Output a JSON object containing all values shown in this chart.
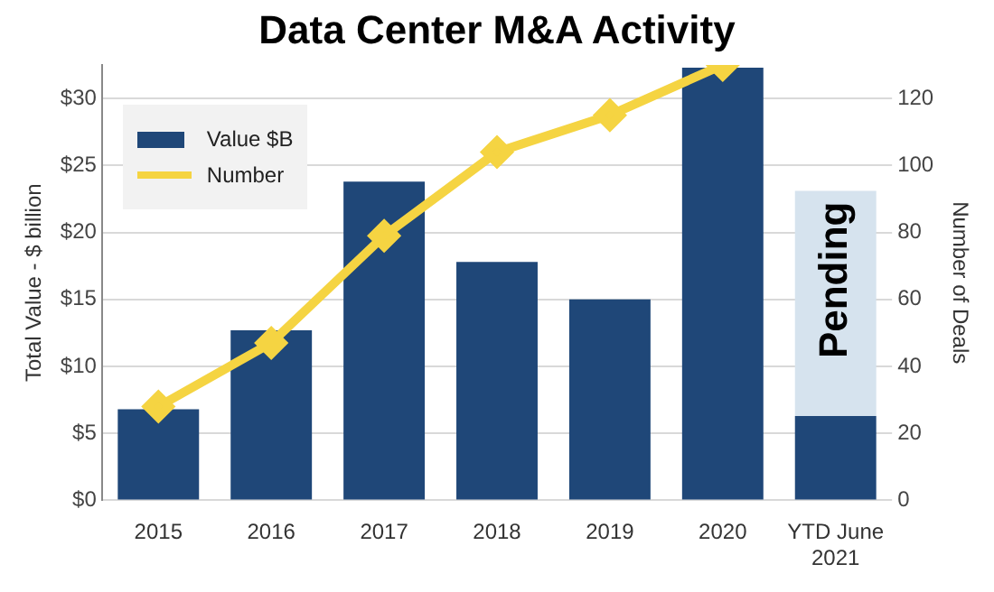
{
  "chart_data": {
    "type": "bar",
    "title": "Data Center M&A Activity",
    "categories": [
      "2015",
      "2016",
      "2017",
      "2018",
      "2019",
      "2020",
      "YTD June 2021"
    ],
    "series": [
      {
        "name": "Value $B",
        "color": "#1f4778",
        "values": [
          6.8,
          12.7,
          23.8,
          17.8,
          15.0,
          32.3,
          6.3
        ]
      },
      {
        "name": "Pending",
        "color": "#d6e3ee",
        "values": [
          null,
          null,
          null,
          null,
          null,
          null,
          16.8
        ]
      },
      {
        "name": "Number",
        "type": "line",
        "axis": "y2",
        "color": "#f5d442",
        "values": [
          28,
          47,
          79,
          104,
          115,
          130,
          null
        ]
      }
    ],
    "stacked": true,
    "ylabel": "Total Value - $ billion",
    "y2label": "Number of Deals",
    "ylim": [
      0,
      32.5
    ],
    "yticks": [
      {
        "value": 0,
        "label": "$0"
      },
      {
        "value": 5,
        "label": "$5"
      },
      {
        "value": 10,
        "label": "$10"
      },
      {
        "value": 15,
        "label": "$15"
      },
      {
        "value": 20,
        "label": "$20"
      },
      {
        "value": 25,
        "label": "$25"
      },
      {
        "value": 30,
        "label": "$30"
      }
    ],
    "y2lim": [
      0,
      130
    ],
    "y2ticks": [
      0,
      20,
      40,
      60,
      80,
      100,
      120
    ],
    "grid": "y",
    "legend": "top left",
    "marker": "diamond",
    "line_style": "solid"
  }
}
